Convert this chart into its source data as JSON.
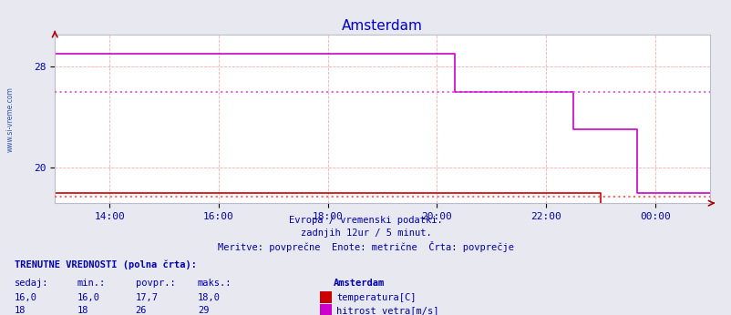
{
  "title": "Amsterdam",
  "title_color": "#0000cc",
  "bg_color": "#e8e8f0",
  "plot_bg_color": "#ffffff",
  "grid_color": "#ffaaaa",
  "xlabel_color": "#0000aa",
  "xtick_labels": [
    "14:00",
    "16:00",
    "18:00",
    "20:00",
    "22:00",
    "00:00"
  ],
  "ytick_labels": [
    "20",
    "28"
  ],
  "ytick_positions": [
    20,
    28
  ],
  "ymin": 17.2,
  "ymax": 30.5,
  "temp_color": "#cc0000",
  "wind_color": "#cc00cc",
  "temp_avg": 17.7,
  "wind_avg": 26.0,
  "temp_dotted_color": "#ff6666",
  "wind_dotted_color": "#dd66dd",
  "watermark_color": "#3355aa",
  "footer_lines": [
    "Evropa / vremenski podatki.",
    "zadnjih 12ur / 5 minut.",
    "Meritve: povprečne  Enote: metrične  Črta: povprečje"
  ],
  "legend_title": "Amsterdam",
  "legend_entries": [
    {
      "label": "temperatura[C]",
      "color": "#cc0000"
    },
    {
      "label": "hitrost vetra[m/s]",
      "color": "#cc00cc"
    }
  ],
  "table_label": "TRENUTNE VREDNOSTI (polna črta):",
  "table_headers": [
    "sedaj:",
    "min.:",
    "povpr.:",
    "maks.:"
  ],
  "table_rows": [
    [
      "16,0",
      "16,0",
      "17,7",
      "18,0"
    ],
    [
      "18",
      "18",
      "26",
      "29"
    ]
  ],
  "temp_data_x": [
    0,
    0.833,
    0.833,
    1.0
  ],
  "temp_data_y": [
    18.0,
    18.0,
    16.0,
    16.0
  ],
  "wind_data_x": [
    0,
    0.611,
    0.611,
    0.792,
    0.792,
    0.889,
    0.889,
    1.0
  ],
  "wind_data_y": [
    29.0,
    29.0,
    26.0,
    26.0,
    23.0,
    23.0,
    18.0,
    18.0
  ]
}
